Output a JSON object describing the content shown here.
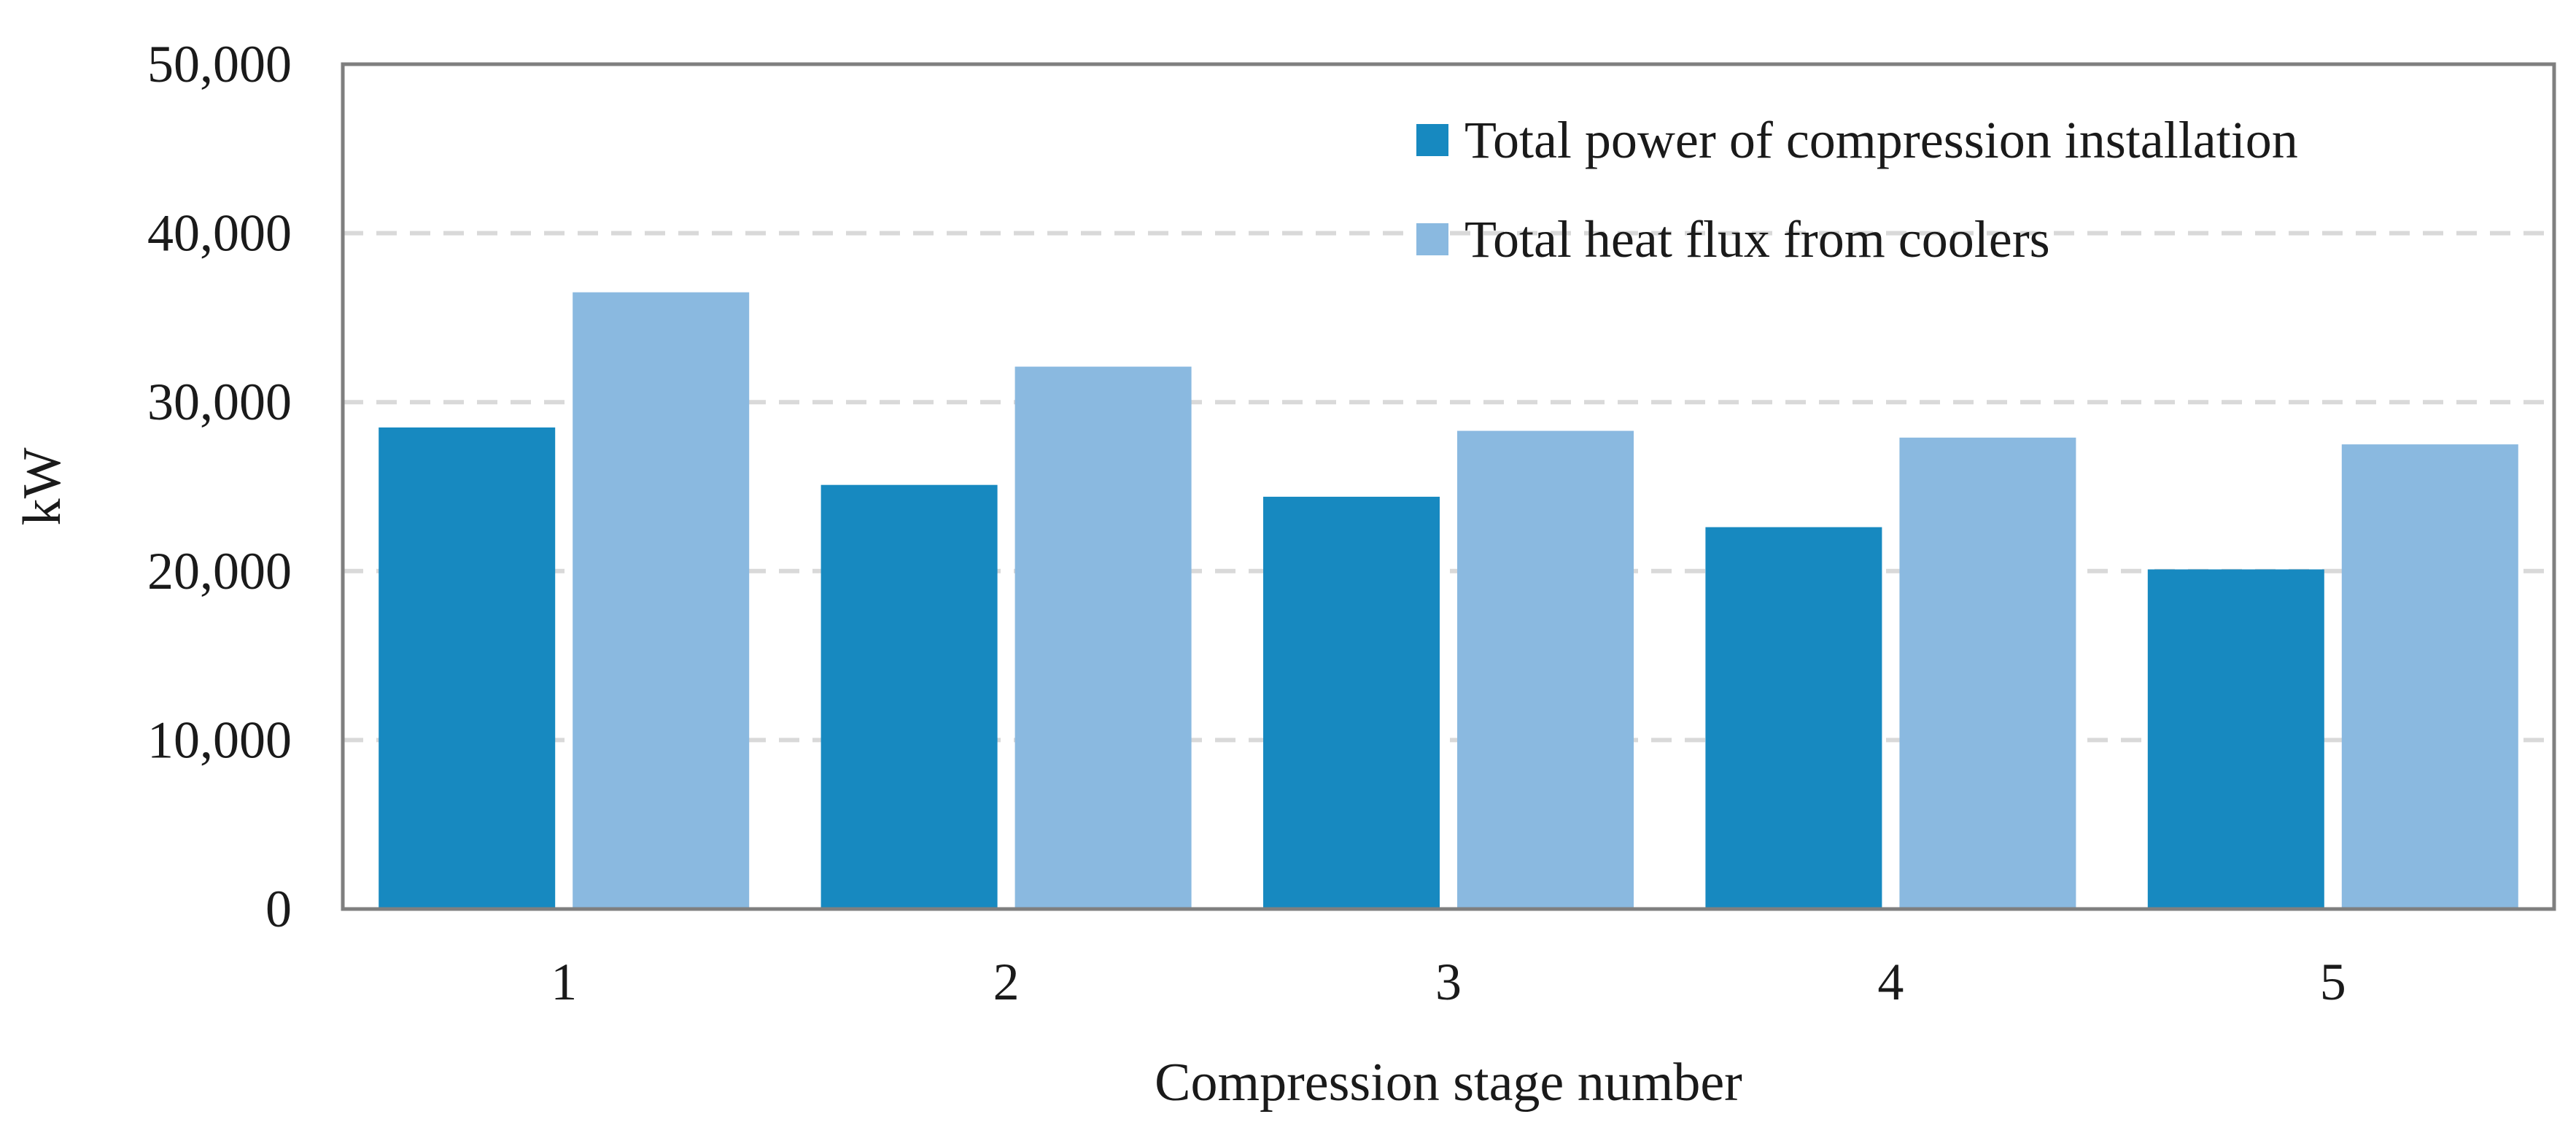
{
  "chart_data": {
    "type": "bar",
    "title": "",
    "xlabel": "Compression stage number",
    "ylabel": "kW",
    "categories": [
      "1",
      "2",
      "3",
      "4",
      "5"
    ],
    "series": [
      {
        "name": "Total power of compression installation",
        "values": [
          28500,
          25100,
          24400,
          22600,
          20100
        ],
        "color": "#1789c0"
      },
      {
        "name": "Total heat flux from coolers",
        "values": [
          36500,
          32100,
          28300,
          27900,
          27500
        ],
        "color": "#8ab9e0"
      }
    ],
    "ylim": [
      0,
      50000
    ],
    "yticks": [
      "0",
      "10,000",
      "20,000",
      "30,000",
      "40,000",
      "50,000"
    ],
    "ytick_values": [
      0,
      10000,
      20000,
      30000,
      40000,
      50000
    ],
    "grid": true,
    "legend_position": "top-right",
    "colors": {
      "axis": "#7f7f7f",
      "grid": "#d9d9d9"
    }
  }
}
